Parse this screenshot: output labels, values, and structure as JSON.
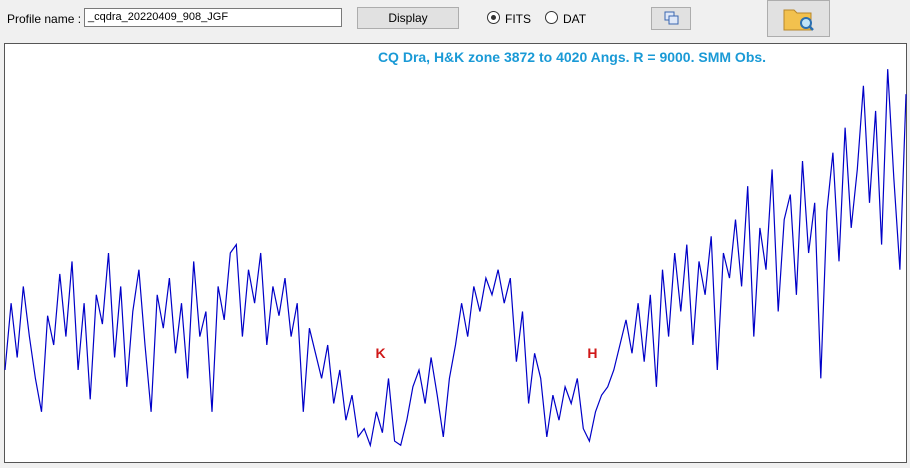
{
  "toolbar": {
    "profile_label": "Profile name :",
    "profile_value": "_cqdra_20220409_908_JGF",
    "display_button": "Display",
    "options": [
      {
        "label": "FITS",
        "checked": true
      },
      {
        "label": "DAT",
        "checked": false
      }
    ]
  },
  "chart_data": {
    "type": "line",
    "title": "CQ Dra, H&K zone 3872 to 4020 Angs. R = 9000.    SMM Obs.",
    "color": "#0000c8",
    "xlim": [
      3872,
      4020
    ],
    "ylim": [
      0,
      100
    ],
    "annotations": [
      {
        "text": "K",
        "x": 3933.7
      },
      {
        "text": "H",
        "x": 3968.5
      }
    ],
    "x": [
      3872,
      3873,
      3874,
      3875,
      3876,
      3877,
      3878,
      3879,
      3880,
      3881,
      3882,
      3883,
      3884,
      3885,
      3886,
      3887,
      3888,
      3889,
      3890,
      3891,
      3892,
      3893,
      3894,
      3895,
      3896,
      3897,
      3898,
      3899,
      3900,
      3901,
      3902,
      3903,
      3904,
      3905,
      3906,
      3907,
      3908,
      3909,
      3910,
      3911,
      3912,
      3913,
      3914,
      3915,
      3916,
      3917,
      3918,
      3919,
      3920,
      3921,
      3922,
      3923,
      3924,
      3925,
      3926,
      3927,
      3928,
      3929,
      3930,
      3931,
      3932,
      3933,
      3934,
      3935,
      3936,
      3937,
      3938,
      3939,
      3940,
      3941,
      3942,
      3943,
      3944,
      3945,
      3946,
      3947,
      3948,
      3949,
      3950,
      3951,
      3952,
      3953,
      3954,
      3955,
      3956,
      3957,
      3958,
      3959,
      3960,
      3961,
      3962,
      3963,
      3964,
      3965,
      3966,
      3967,
      3968,
      3969,
      3970,
      3971,
      3972,
      3973,
      3974,
      3975,
      3976,
      3977,
      3978,
      3979,
      3980,
      3981,
      3982,
      3983,
      3984,
      3985,
      3986,
      3987,
      3988,
      3989,
      3990,
      3991,
      3992,
      3993,
      3994,
      3995,
      3996,
      3997,
      3998,
      3999,
      4000,
      4001,
      4002,
      4003,
      4004,
      4005,
      4006,
      4007,
      4008,
      4009,
      4010,
      4011,
      4012,
      4013,
      4014,
      4015,
      4016,
      4017,
      4018,
      4019,
      4020
    ],
    "values": [
      22,
      38,
      25,
      42,
      30,
      20,
      12,
      35,
      28,
      45,
      30,
      48,
      22,
      38,
      15,
      40,
      33,
      50,
      25,
      42,
      18,
      36,
      46,
      28,
      12,
      40,
      32,
      44,
      26,
      38,
      20,
      48,
      30,
      36,
      12,
      42,
      34,
      50,
      52,
      30,
      46,
      38,
      50,
      28,
      42,
      35,
      44,
      30,
      38,
      12,
      32,
      26,
      20,
      28,
      14,
      22,
      10,
      16,
      6,
      8,
      4,
      12,
      7,
      20,
      5,
      4,
      10,
      18,
      22,
      14,
      25,
      16,
      6,
      20,
      28,
      38,
      30,
      42,
      36,
      44,
      40,
      46,
      38,
      44,
      24,
      36,
      14,
      26,
      20,
      6,
      16,
      10,
      18,
      14,
      20,
      8,
      5,
      12,
      16,
      18,
      22,
      28,
      34,
      26,
      38,
      24,
      40,
      18,
      46,
      30,
      50,
      36,
      52,
      28,
      48,
      40,
      54,
      22,
      50,
      44,
      58,
      42,
      66,
      30,
      56,
      46,
      70,
      36,
      58,
      64,
      40,
      72,
      50,
      62,
      20,
      60,
      74,
      48,
      80,
      56,
      70,
      90,
      62,
      84,
      52,
      94,
      68,
      46,
      88
    ]
  }
}
